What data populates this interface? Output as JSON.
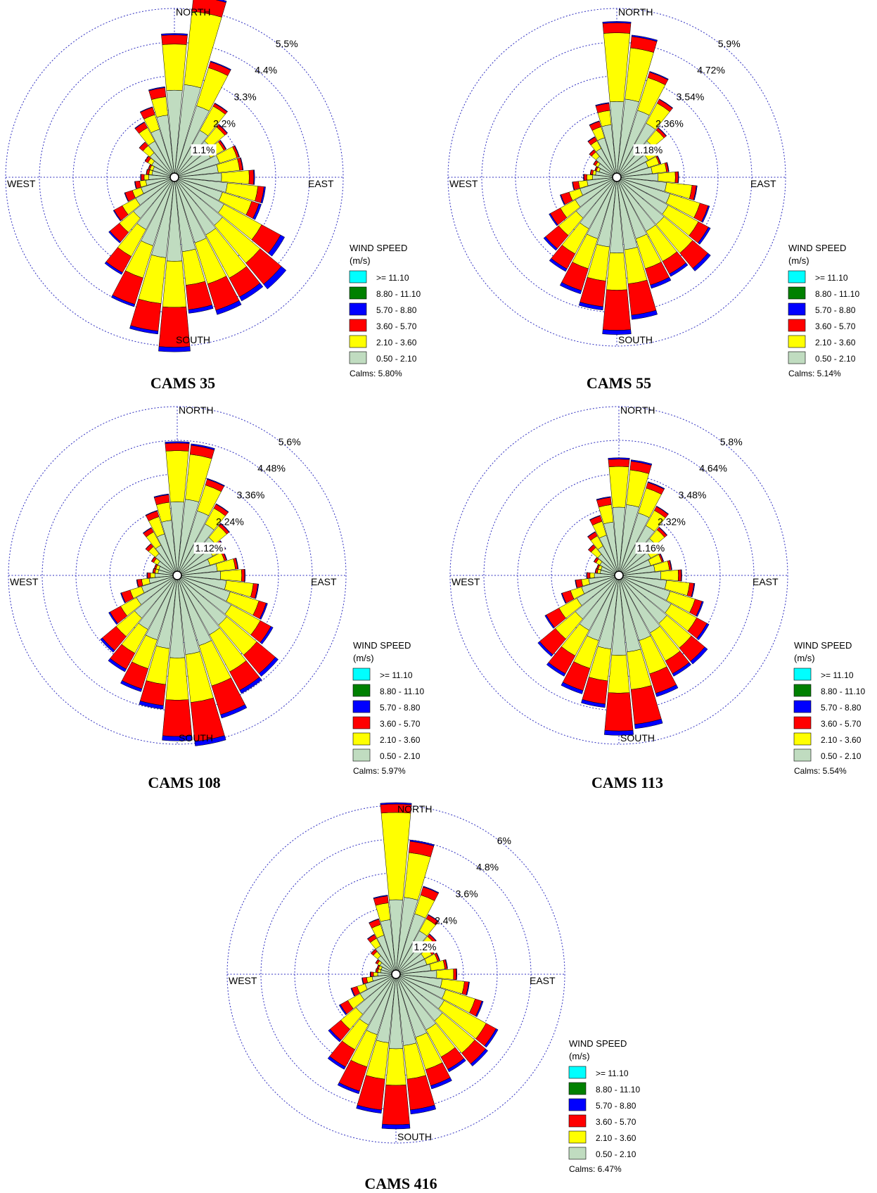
{
  "chart_data": [
    {
      "type": "windrose",
      "title": "CAMS 35",
      "directions": [
        "NORTH",
        "EAST",
        "SOUTH",
        "WEST"
      ],
      "rings": [
        "1.1%",
        "2.2%",
        "3.3%",
        "4.4%",
        "5.5%"
      ],
      "rmax_pct": 5.5,
      "calms": "Calms: 5.80%",
      "stacks": [
        [
          2.7,
          1.5,
          0.3,
          0.05
        ],
        [
          2.9,
          2.4,
          0.5,
          0.05
        ],
        [
          2.3,
          1.3,
          0.2,
          0.03
        ],
        [
          1.6,
          0.9,
          0.1,
          0.02
        ],
        [
          1.4,
          0.6,
          0.1,
          0.02
        ],
        [
          1.2,
          0.5,
          0.07,
          0.02
        ],
        [
          1.4,
          0.6,
          0.07,
          0.02
        ],
        [
          1.3,
          0.7,
          0.1,
          0.02
        ],
        [
          1.4,
          0.9,
          0.15,
          0.03
        ],
        [
          1.6,
          1.0,
          0.2,
          0.05
        ],
        [
          1.5,
          1.0,
          0.25,
          0.08
        ],
        [
          1.7,
          1.4,
          0.7,
          0.15
        ],
        [
          1.9,
          1.6,
          0.9,
          0.2
        ],
        [
          2.0,
          1.6,
          0.7,
          0.15
        ],
        [
          2.1,
          1.4,
          0.9,
          0.15
        ],
        [
          2.3,
          1.1,
          0.8,
          0.12
        ],
        [
          2.6,
          1.5,
          1.3,
          0.15
        ],
        [
          2.5,
          1.5,
          0.9,
          0.1
        ],
        [
          2.2,
          1.1,
          0.9,
          0.08
        ],
        [
          1.8,
          1.0,
          0.6,
          0.07
        ],
        [
          1.6,
          0.6,
          0.4,
          0.05
        ],
        [
          1.3,
          0.5,
          0.3,
          0.03
        ],
        [
          1.0,
          0.3,
          0.25,
          0.02
        ],
        [
          0.8,
          0.2,
          0.15,
          0.02
        ],
        [
          0.7,
          0.15,
          0.1,
          0.02
        ],
        [
          0.6,
          0.1,
          0.08,
          0.01
        ],
        [
          0.6,
          0.1,
          0.05,
          0.01
        ],
        [
          0.7,
          0.15,
          0.1,
          0.01
        ],
        [
          0.9,
          0.3,
          0.15,
          0.01
        ],
        [
          1.2,
          0.5,
          0.2,
          0.02
        ],
        [
          1.5,
          0.5,
          0.25,
          0.02
        ],
        [
          1.9,
          0.6,
          0.3,
          0.03
        ]
      ]
    },
    {
      "type": "windrose",
      "title": "CAMS 55",
      "directions": [
        "NORTH",
        "EAST",
        "SOUTH",
        "WEST"
      ],
      "rings": [
        "1.18%",
        "2.36%",
        "3.54%",
        "4.72%",
        "5.9%"
      ],
      "rmax_pct": 5.9,
      "calms": "Calms: 5.14%",
      "stacks": [
        [
          2.5,
          2.4,
          0.35,
          0.05
        ],
        [
          2.6,
          1.8,
          0.4,
          0.05
        ],
        [
          2.3,
          1.2,
          0.2,
          0.03
        ],
        [
          2.0,
          0.8,
          0.15,
          0.02
        ],
        [
          1.5,
          0.5,
          0.1,
          0.02
        ],
        [
          1.1,
          0.35,
          0.07,
          0.02
        ],
        [
          1.0,
          0.4,
          0.05,
          0.02
        ],
        [
          1.1,
          0.5,
          0.07,
          0.02
        ],
        [
          1.3,
          0.6,
          0.1,
          0.02
        ],
        [
          1.6,
          0.9,
          0.15,
          0.03
        ],
        [
          1.8,
          1.1,
          0.3,
          0.05
        ],
        [
          1.9,
          1.2,
          0.4,
          0.08
        ],
        [
          2.0,
          1.3,
          0.7,
          0.12
        ],
        [
          2.0,
          1.2,
          0.5,
          0.1
        ],
        [
          2.1,
          1.1,
          0.6,
          0.12
        ],
        [
          2.4,
          1.2,
          1.1,
          0.15
        ],
        [
          2.5,
          1.3,
          1.4,
          0.15
        ],
        [
          2.3,
          1.2,
          0.9,
          0.12
        ],
        [
          2.1,
          1.1,
          0.8,
          0.12
        ],
        [
          1.9,
          1.0,
          0.6,
          0.1
        ],
        [
          1.7,
          0.8,
          0.6,
          0.08
        ],
        [
          1.5,
          0.6,
          0.4,
          0.05
        ],
        [
          1.2,
          0.4,
          0.3,
          0.03
        ],
        [
          0.9,
          0.3,
          0.2,
          0.02
        ],
        [
          0.7,
          0.2,
          0.1,
          0.02
        ],
        [
          0.6,
          0.1,
          0.08,
          0.01
        ],
        [
          0.5,
          0.1,
          0.05,
          0.01
        ],
        [
          0.6,
          0.1,
          0.08,
          0.01
        ],
        [
          0.8,
          0.2,
          0.1,
          0.01
        ],
        [
          1.0,
          0.3,
          0.15,
          0.02
        ],
        [
          1.3,
          0.4,
          0.2,
          0.02
        ],
        [
          1.7,
          0.5,
          0.25,
          0.03
        ]
      ]
    },
    {
      "type": "windrose",
      "title": "CAMS 108",
      "directions": [
        "NORTH",
        "EAST",
        "SOUTH",
        "WEST"
      ],
      "rings": [
        "1.12%",
        "2.24%",
        "3.36%",
        "4.48%",
        "5.6%"
      ],
      "rmax_pct": 5.6,
      "calms": "Calms: 5.97%",
      "stacks": [
        [
          2.3,
          1.7,
          0.25,
          0.05
        ],
        [
          2.4,
          1.5,
          0.3,
          0.05
        ],
        [
          2.1,
          0.9,
          0.2,
          0.03
        ],
        [
          1.8,
          0.6,
          0.15,
          0.02
        ],
        [
          1.5,
          0.5,
          0.1,
          0.02
        ],
        [
          1.2,
          0.4,
          0.08,
          0.02
        ],
        [
          1.0,
          0.5,
          0.07,
          0.02
        ],
        [
          1.2,
          0.6,
          0.08,
          0.02
        ],
        [
          1.3,
          0.7,
          0.1,
          0.02
        ],
        [
          1.5,
          0.9,
          0.15,
          0.03
        ],
        [
          1.7,
          1.0,
          0.25,
          0.05
        ],
        [
          1.9,
          1.1,
          0.4,
          0.08
        ],
        [
          2.0,
          1.3,
          0.8,
          0.12
        ],
        [
          2.1,
          1.4,
          0.7,
          0.12
        ],
        [
          2.3,
          1.4,
          1.0,
          0.12
        ],
        [
          2.5,
          1.6,
          1.3,
          0.15
        ],
        [
          2.6,
          1.4,
          1.2,
          0.15
        ],
        [
          2.3,
          1.2,
          0.7,
          0.12
        ],
        [
          2.1,
          1.0,
          0.7,
          0.1
        ],
        [
          1.9,
          0.9,
          0.6,
          0.1
        ],
        [
          1.7,
          0.8,
          0.6,
          0.08
        ],
        [
          1.4,
          0.6,
          0.4,
          0.05
        ],
        [
          1.1,
          0.4,
          0.3,
          0.03
        ],
        [
          0.8,
          0.25,
          0.15,
          0.02
        ],
        [
          0.6,
          0.15,
          0.1,
          0.02
        ],
        [
          0.5,
          0.1,
          0.07,
          0.01
        ],
        [
          0.5,
          0.1,
          0.05,
          0.01
        ],
        [
          0.6,
          0.15,
          0.08,
          0.01
        ],
        [
          0.8,
          0.3,
          0.12,
          0.01
        ],
        [
          1.0,
          0.5,
          0.15,
          0.02
        ],
        [
          1.3,
          0.6,
          0.2,
          0.02
        ],
        [
          1.7,
          0.6,
          0.25,
          0.03
        ]
      ]
    },
    {
      "type": "windrose",
      "title": "CAMS 113",
      "directions": [
        "NORTH",
        "EAST",
        "SOUTH",
        "WEST"
      ],
      "rings": [
        "1.16%",
        "2.32%",
        "3.48%",
        "4.64%",
        "5.8%"
      ],
      "rmax_pct": 5.8,
      "calms": "Calms: 5.54%",
      "stacks": [
        [
          2.2,
          1.4,
          0.25,
          0.05
        ],
        [
          2.3,
          1.2,
          0.3,
          0.05
        ],
        [
          2.1,
          0.9,
          0.2,
          0.03
        ],
        [
          1.8,
          0.6,
          0.15,
          0.02
        ],
        [
          1.5,
          0.4,
          0.1,
          0.02
        ],
        [
          1.1,
          0.35,
          0.07,
          0.02
        ],
        [
          1.0,
          0.4,
          0.05,
          0.02
        ],
        [
          1.1,
          0.5,
          0.07,
          0.02
        ],
        [
          1.3,
          0.6,
          0.1,
          0.02
        ],
        [
          1.5,
          0.8,
          0.15,
          0.03
        ],
        [
          1.7,
          0.9,
          0.25,
          0.05
        ],
        [
          1.9,
          1.0,
          0.4,
          0.08
        ],
        [
          2.0,
          1.1,
          0.6,
          0.12
        ],
        [
          2.1,
          1.1,
          0.5,
          0.1
        ],
        [
          2.2,
          1.2,
          0.7,
          0.12
        ],
        [
          2.5,
          1.3,
          1.2,
          0.15
        ],
        [
          2.6,
          1.3,
          1.3,
          0.15
        ],
        [
          2.4,
          1.1,
          0.8,
          0.12
        ],
        [
          2.2,
          1.0,
          0.8,
          0.12
        ],
        [
          2.0,
          1.0,
          0.7,
          0.1
        ],
        [
          1.8,
          0.9,
          0.7,
          0.08
        ],
        [
          1.5,
          0.7,
          0.5,
          0.05
        ],
        [
          1.2,
          0.4,
          0.3,
          0.03
        ],
        [
          0.9,
          0.25,
          0.2,
          0.02
        ],
        [
          0.7,
          0.15,
          0.1,
          0.02
        ],
        [
          0.5,
          0.1,
          0.07,
          0.01
        ],
        [
          0.5,
          0.1,
          0.05,
          0.01
        ],
        [
          0.6,
          0.15,
          0.08,
          0.01
        ],
        [
          0.8,
          0.3,
          0.12,
          0.01
        ],
        [
          1.0,
          0.4,
          0.15,
          0.02
        ],
        [
          1.3,
          0.5,
          0.2,
          0.02
        ],
        [
          1.7,
          0.6,
          0.25,
          0.03
        ]
      ]
    },
    {
      "type": "windrose",
      "title": "CAMS 416",
      "directions": [
        "NORTH",
        "EAST",
        "SOUTH",
        "WEST"
      ],
      "rings": [
        "1.2%",
        "2.4%",
        "3.6%",
        "4.8%",
        "6%"
      ],
      "rmax_pct": 6.0,
      "calms": "Calms: 6.47%",
      "stacks": [
        [
          2.5,
          3.1,
          0.3,
          0.05
        ],
        [
          2.6,
          1.6,
          0.4,
          0.05
        ],
        [
          2.1,
          0.7,
          0.3,
          0.03
        ],
        [
          1.6,
          0.5,
          0.15,
          0.02
        ],
        [
          1.2,
          0.4,
          0.1,
          0.02
        ],
        [
          1.0,
          0.3,
          0.08,
          0.02
        ],
        [
          1.0,
          0.4,
          0.07,
          0.02
        ],
        [
          1.1,
          0.5,
          0.08,
          0.02
        ],
        [
          1.3,
          0.6,
          0.1,
          0.02
        ],
        [
          1.5,
          0.8,
          0.15,
          0.03
        ],
        [
          1.7,
          1.1,
          0.25,
          0.05
        ],
        [
          1.8,
          1.7,
          0.4,
          0.08
        ],
        [
          2.0,
          1.5,
          0.5,
          0.1
        ],
        [
          2.1,
          1.1,
          0.5,
          0.1
        ],
        [
          2.2,
          1.2,
          0.6,
          0.12
        ],
        [
          2.4,
          1.2,
          1.1,
          0.15
        ],
        [
          2.5,
          1.3,
          1.4,
          0.15
        ],
        [
          2.3,
          1.3,
          1.1,
          0.12
        ],
        [
          2.1,
          1.2,
          0.9,
          0.1
        ],
        [
          1.9,
          1.0,
          0.7,
          0.1
        ],
        [
          1.7,
          0.7,
          0.5,
          0.08
        ],
        [
          1.3,
          0.5,
          0.3,
          0.05
        ],
        [
          1.0,
          0.3,
          0.2,
          0.03
        ],
        [
          0.7,
          0.2,
          0.15,
          0.02
        ],
        [
          0.5,
          0.15,
          0.1,
          0.02
        ],
        [
          0.4,
          0.1,
          0.07,
          0.01
        ],
        [
          0.4,
          0.1,
          0.05,
          0.01
        ],
        [
          0.5,
          0.1,
          0.07,
          0.01
        ],
        [
          0.7,
          0.2,
          0.1,
          0.01
        ],
        [
          1.0,
          0.3,
          0.15,
          0.02
        ],
        [
          1.3,
          0.4,
          0.2,
          0.02
        ],
        [
          1.8,
          0.6,
          0.25,
          0.03
        ]
      ]
    }
  ],
  "legend": {
    "title_line1": "WIND SPEED",
    "title_line2": "(m/s)",
    "classes": [
      {
        "label": ">= 11.10",
        "color": "#00ffff"
      },
      {
        "label": "8.80 - 11.10",
        "color": "#008000"
      },
      {
        "label": "5.70 - 8.80",
        "color": "#0000ff"
      },
      {
        "label": "3.60 - 5.70",
        "color": "#ff0000"
      },
      {
        "label": "2.10 - 3.60",
        "color": "#ffff00"
      },
      {
        "label": "0.50 - 2.10",
        "color": "#c0dcc0"
      }
    ]
  },
  "colors": {
    "c050_210": "#c0dcc0",
    "c210_360": "#ffff00",
    "c360_570": "#ff0000",
    "c570_880": "#0000ff",
    "ring": "#3030c0"
  }
}
